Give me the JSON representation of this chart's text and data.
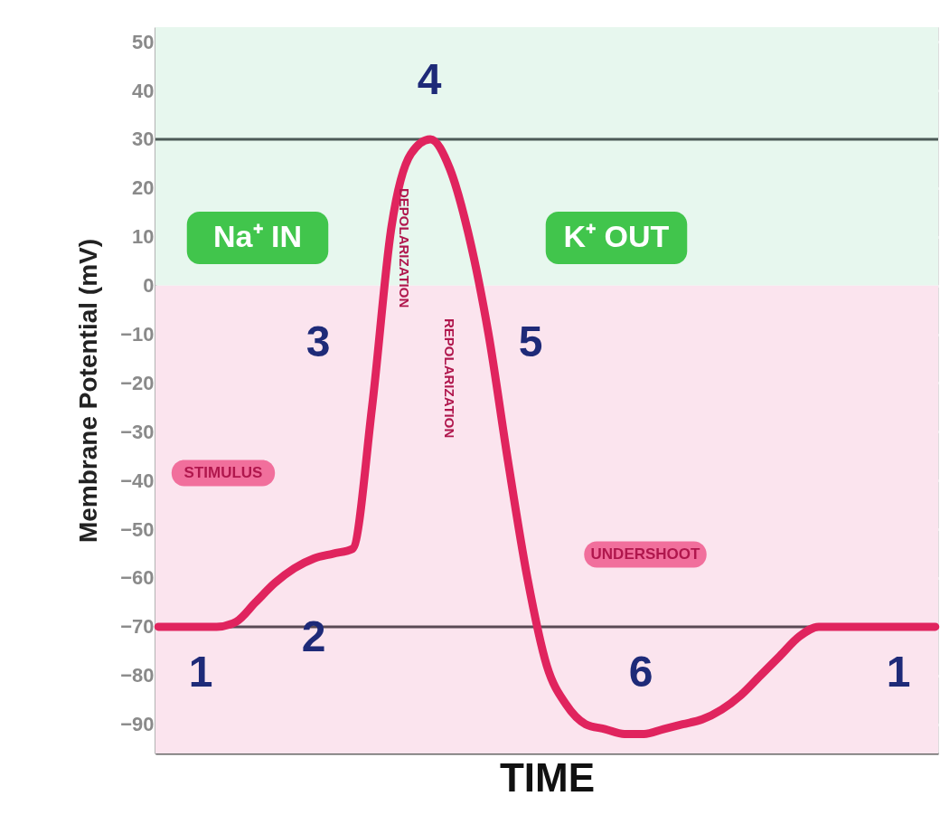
{
  "chart_data": {
    "type": "line",
    "xlabel": "TIME",
    "ylabel": "Membrane Potential (mV)",
    "categories": [
      null,
      null,
      null,
      null,
      null,
      null,
      null,
      null,
      null,
      null,
      null,
      null,
      null,
      null,
      null,
      null,
      null,
      null,
      null,
      null,
      null,
      null,
      null,
      null,
      null,
      null,
      null,
      null,
      null,
      null,
      null,
      null,
      null,
      null,
      null,
      null,
      null,
      null,
      null,
      null,
      null
    ],
    "series": [
      {
        "color": "#e0245e",
        "values": [
          -70,
          -70,
          -70,
          -70,
          -69,
          -65,
          -61,
          -58,
          -56,
          -55,
          -54,
          -25,
          12,
          27,
          30,
          24,
          10,
          -10,
          -36,
          -60,
          -78,
          -86,
          -90,
          -91,
          -92,
          -92,
          -91,
          -90,
          -89,
          -87,
          -84,
          -80,
          -76,
          -72,
          -70,
          -70,
          -70,
          -70,
          -70,
          -70,
          -70
        ]
      }
    ],
    "ylim": [
      -96,
      53
    ],
    "yticks": [
      50,
      40,
      30,
      20,
      10,
      0,
      -10,
      -20,
      -30,
      -40,
      -50,
      -60,
      -70,
      -80,
      -90
    ],
    "grid": "y",
    "tick_labels": "y",
    "marker": "none",
    "line_style": "solid",
    "ref_lines": [
      {
        "axis": "y",
        "value": 30,
        "color": "#4d5a57"
      },
      {
        "axis": "y",
        "value": -70,
        "color": "#5a4a55"
      }
    ],
    "bands": [
      {
        "axis": "y",
        "from": 0,
        "to": 53,
        "color": "#e7f7ee"
      },
      {
        "axis": "y",
        "from": -96,
        "to": 0,
        "color": "#fbe4ee"
      }
    ],
    "annotations": [
      "1",
      "2",
      "3",
      "4",
      "5",
      "6",
      "1",
      "Na⁺ IN",
      "K⁺ OUT",
      "STIMULUS",
      "DEPOLARIZATION",
      "REPOLARIZATION",
      "UNDERSHOOT"
    ]
  }
}
